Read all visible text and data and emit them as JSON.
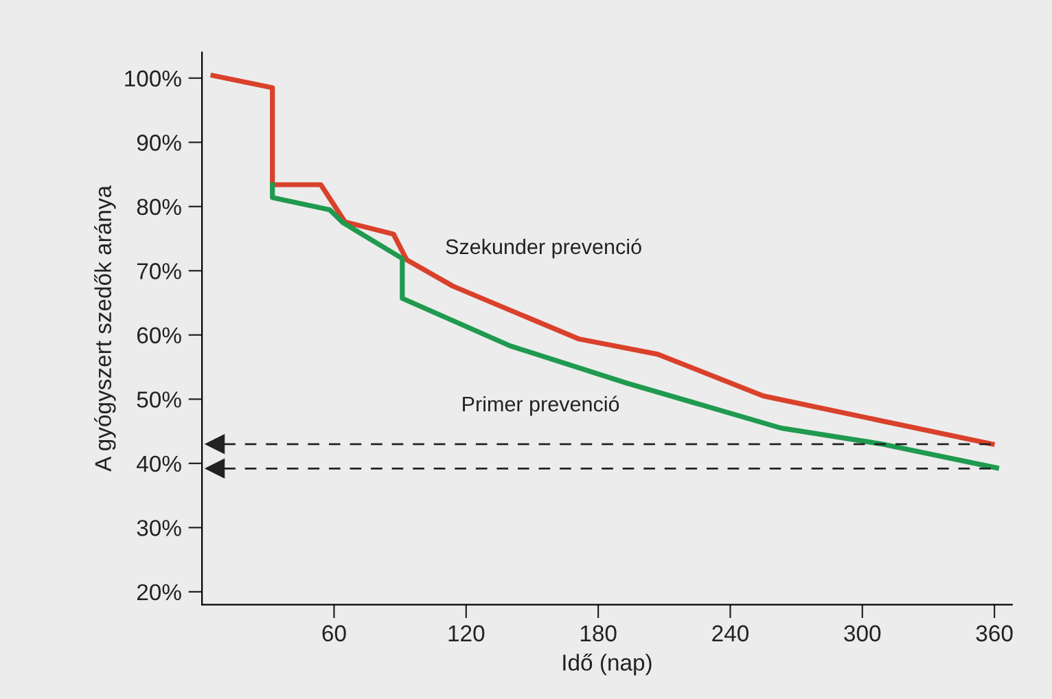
{
  "chart_data": {
    "type": "line",
    "xlabel": "Idő (nap)",
    "ylabel": "A gyógyszert szedők aránya",
    "series": [
      {
        "name": "Szekunder prevenció",
        "color": "#d9412b",
        "x": [
          5,
          32,
          32,
          54,
          65,
          87,
          93,
          114,
          171,
          207,
          255,
          359
        ],
        "values": [
          100.4,
          98.5,
          83.4,
          83.4,
          77.6,
          75.7,
          71.7,
          67.6,
          59.4,
          57.0,
          50.5,
          43.0
        ]
      },
      {
        "name": "Primer prevenció",
        "color": "#1f9a4f",
        "x": [
          32,
          32,
          58,
          64,
          91,
          91,
          140,
          193,
          263,
          309,
          361
        ],
        "values": [
          83.4,
          81.4,
          79.5,
          77.5,
          71.9,
          65.7,
          58.3,
          52.5,
          45.5,
          43.0,
          39.3
        ]
      }
    ],
    "xlim": [
      0,
      368
    ],
    "ylim": [
      18,
      104
    ],
    "xticks": [
      60,
      120,
      180,
      240,
      300,
      360
    ],
    "yticks": [
      {
        "value": 20,
        "label": "20%"
      },
      {
        "value": 30,
        "label": "30%"
      },
      {
        "value": 40,
        "label": "40%"
      },
      {
        "value": 50,
        "label": "50%"
      },
      {
        "value": 60,
        "label": "60%"
      },
      {
        "value": 70,
        "label": "70%"
      },
      {
        "value": 80,
        "label": "80%"
      },
      {
        "value": 90,
        "label": "90%"
      },
      {
        "value": 100,
        "label": "100%"
      }
    ],
    "ref_lines": [
      {
        "axis": "y",
        "value": 43.0,
        "color": "#222222",
        "line_style": "dashed"
      },
      {
        "axis": "y",
        "value": 39.2,
        "color": "#222222",
        "line_style": "dashed"
      }
    ],
    "grid": false,
    "legend": false,
    "marker": "none",
    "line_style": "solid"
  }
}
